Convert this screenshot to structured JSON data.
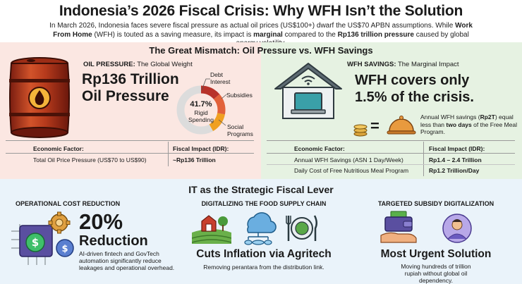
{
  "header": {
    "title": "Indonesia’s 2026 Fiscal Crisis: Why WFH Isn’t the Solution",
    "intro_1": "In March 2026, Indonesia faces severe fiscal pressure as actual oil prices (US$100+) dwarf the US$70 APBN assumptions. While ",
    "intro_bold_1": "Work From Home",
    "intro_2": " (WFH) is touted as a saving measure, its impact is ",
    "intro_bold_2": "marginal",
    "intro_3": " compared to the ",
    "intro_bold_3": "Rp136 trillion pressure",
    "intro_4": " caused by global energy volatility."
  },
  "mismatch": {
    "title": "The Great Mismatch: Oil Pressure vs. WFH Savings",
    "oil": {
      "heading_bold": "OIL PRESSURE:",
      "heading_rest": " The Global Weight",
      "big_line1": "Rp136 Trillion",
      "big_line2": "Oil Pressure",
      "donut_pct": "41.7%",
      "donut_label1": "Rigid",
      "donut_label2": "Spending",
      "donut_share": 0.417,
      "labels": {
        "debt1": "Debt",
        "debt2": "Interest",
        "subsidies": "Subsidies",
        "social1": "Social",
        "social2": "Programs"
      },
      "colors": {
        "debt": "#b8322a",
        "subsidies": "#e2613a",
        "social": "#f0a021",
        "rest": "#dcdcdc"
      },
      "table": {
        "col1": "Economic Factor:",
        "col2": "Fiscal Impact (IDR):",
        "rows": [
          {
            "factor": "Total Oil Price Pressure (US$70 to US$90)",
            "impact": "~Rp136 Trillion"
          }
        ]
      }
    },
    "wfh": {
      "heading_bold": "WFH SAVINGS:",
      "heading_rest": " The Marginal Impact",
      "big_line1": "WFH covers only",
      "big_line2": "1.5% of the crisis.",
      "equals": "=",
      "note_1": "Annual WFH savings (",
      "note_bold_1": "Rp2T",
      "note_2": ") equal less than ",
      "note_bold_2": "two days",
      "note_3": " of the Free Meal Program.",
      "table": {
        "col1": "Economic Factor:",
        "col2": "Fiscal Impact (IDR):",
        "rows": [
          {
            "factor": "Annual WFH Savings (ASN 1 Day/Week)",
            "impact": "Rp1.4 – 2.4 Trillion"
          },
          {
            "factor": "Daily Cost of Free Nutritious Meal Program",
            "impact": "Rp1.2 Trillion/Day"
          }
        ]
      }
    }
  },
  "it_lever": {
    "title": "IT as the Strategic Fiscal Lever",
    "op": {
      "heading": "OPERATIONAL COST REDUCTION",
      "big1": "20%",
      "big2": "Reduction",
      "desc": "AI-driven fintech and GovTech automation significantly reduce leakages and operational overhead."
    },
    "food": {
      "heading": "DIGITALIZING THE FOOD SUPPLY CHAIN",
      "big": "Cuts Inflation via Agritech",
      "desc": "Removing perantara from the distribution link."
    },
    "subsidy": {
      "heading": "TARGETED SUBSIDY DIGITALIZATION",
      "big": "Most Urgent Solution",
      "desc": "Moving hundreds of trillion rupiah without global oil dependency."
    }
  }
}
